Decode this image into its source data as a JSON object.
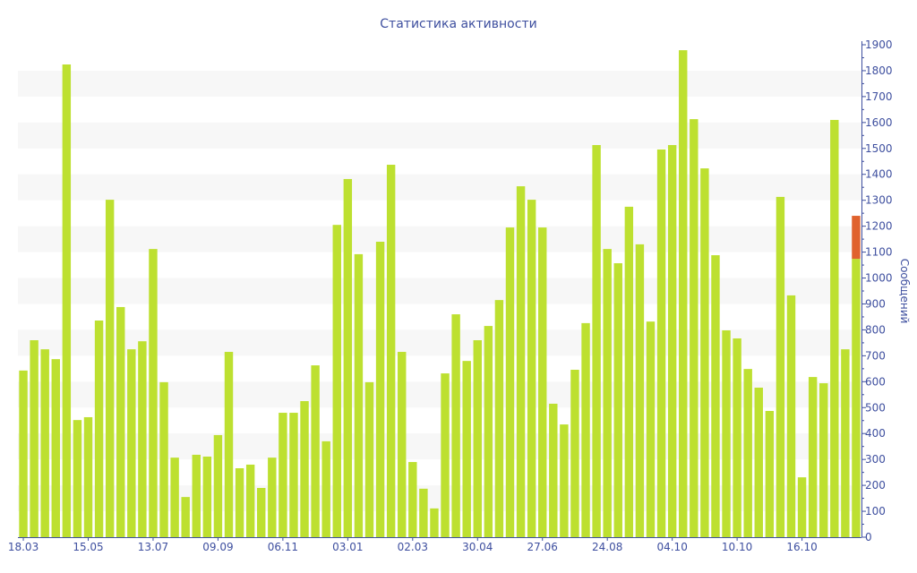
{
  "chart_data": {
    "type": "bar",
    "title": "Статистика активности",
    "xlabel": "",
    "ylabel": "Сообщений",
    "ylim": [
      0,
      1900
    ],
    "yticks": [
      0,
      100,
      200,
      300,
      400,
      500,
      600,
      700,
      800,
      900,
      1000,
      1100,
      1200,
      1300,
      1400,
      1500,
      1600,
      1700,
      1800,
      1900
    ],
    "y_axis_side": "right",
    "grid": "alternating horizontal bands",
    "categories": [
      "18.03",
      "",
      "",
      "",
      "",
      "",
      "15.05",
      "",
      "",
      "",
      "",
      "",
      "13.07",
      "",
      "",
      "",
      "",
      "",
      "09.09",
      "",
      "",
      "",
      "",
      "",
      "06.11",
      "",
      "",
      "",
      "",
      "",
      "03.01",
      "",
      "",
      "",
      "",
      "",
      "02.03",
      "",
      "",
      "",
      "",
      "",
      "30.04",
      "",
      "",
      "",
      "",
      "",
      "27.06",
      "",
      "",
      "",
      "",
      "",
      "24.08",
      "",
      "",
      "",
      "",
      "",
      "04.10",
      "",
      "",
      "",
      "",
      "",
      "10.10",
      "",
      "",
      "",
      "",
      "",
      "16.10",
      "",
      "",
      "",
      "",
      ""
    ],
    "series": [
      {
        "color": "#bde030",
        "values": [
          643,
          760,
          725,
          687,
          1824,
          452,
          463,
          836,
          1302,
          888,
          725,
          756,
          1112,
          598,
          307,
          155,
          318,
          311,
          394,
          715,
          266,
          280,
          190,
          307,
          480,
          480,
          525,
          663,
          370,
          1205,
          1382,
          1092,
          598,
          1140,
          1437,
          715,
          290,
          187,
          111,
          632,
          860,
          680,
          760,
          815,
          915,
          1195,
          1354,
          1302,
          1195,
          515,
          435,
          646,
          826,
          1513,
          1112,
          1057,
          1275,
          1130,
          832,
          1496,
          1513,
          1879,
          1613,
          1423,
          1088,
          798,
          767,
          649,
          577,
          487,
          1313,
          933,
          231,
          618,
          594,
          1610,
          725,
          1074
        ]
      },
      {
        "color": "#e0622e",
        "values": [
          0,
          0,
          0,
          0,
          0,
          0,
          0,
          0,
          0,
          0,
          0,
          0,
          0,
          0,
          0,
          0,
          0,
          0,
          0,
          0,
          0,
          0,
          0,
          0,
          0,
          0,
          0,
          0,
          0,
          0,
          0,
          0,
          0,
          0,
          0,
          0,
          0,
          0,
          0,
          0,
          0,
          0,
          0,
          0,
          0,
          0,
          0,
          0,
          0,
          0,
          0,
          0,
          0,
          0,
          0,
          0,
          0,
          0,
          0,
          0,
          0,
          0,
          0,
          0,
          0,
          0,
          0,
          0,
          0,
          0,
          0,
          0,
          0,
          0,
          0,
          0,
          0,
          166
        ]
      }
    ],
    "stacked": true,
    "axis_color": "#3e4f9f",
    "band_color": "#f7f7f7"
  }
}
